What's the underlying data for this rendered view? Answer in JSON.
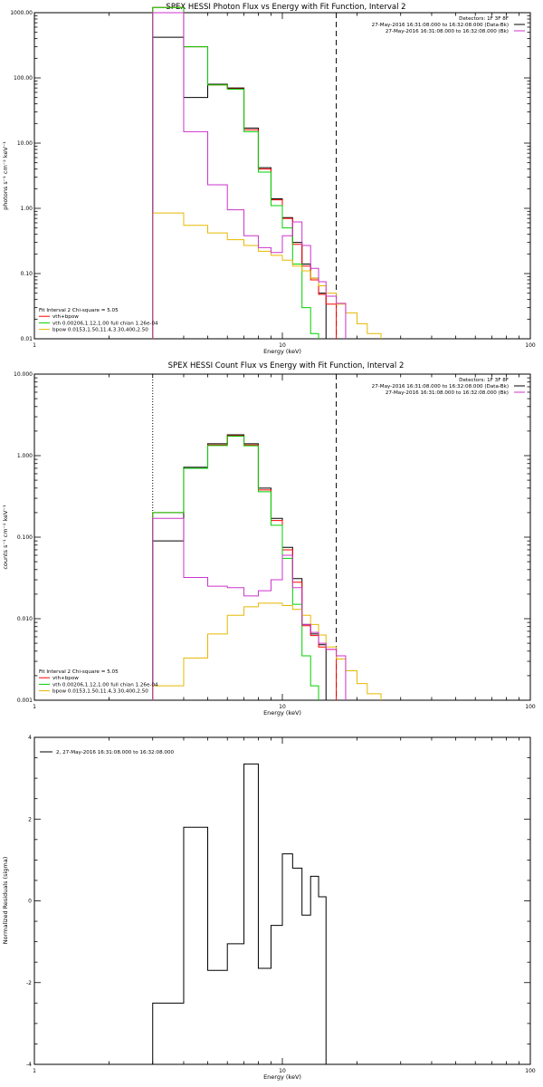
{
  "page": {
    "background": "#ffffff"
  },
  "colors": {
    "total": "#000000",
    "fit": "#ff0000",
    "vth": "#00d000",
    "bpow": "#e6b800",
    "data": "#cc33cc",
    "axes": "#000000"
  },
  "chart_data": [
    {
      "id": "photon",
      "type": "line",
      "title": "SPEX HESSI Photon Flux vs Energy with Fit Function, Interval 2",
      "xlabel": "Energy (keV)",
      "ylabel": "photons s⁻¹ cm⁻² keV⁻¹",
      "xscale": "log",
      "yscale": "log",
      "xlim": [
        1,
        100
      ],
      "ylim": [
        0.01,
        1000
      ],
      "x_ticks": [
        "1",
        "10",
        "100"
      ],
      "y_ticks": [
        "0.01",
        "0.10",
        "1.00",
        "10.00",
        "100.00",
        "1000.00"
      ],
      "vlines": [
        {
          "x": 3,
          "style": "dotted"
        },
        {
          "x": 16.5,
          "style": "dashed"
        }
      ],
      "legend_top": {
        "placement": "top-right",
        "lines": [
          {
            "text": "Detectors: 1F 3F 8F",
            "series": null
          },
          {
            "text": "27-May-2016 16:31:08.000 to 16:32:08.000 (Data-Bk)",
            "series": "total"
          },
          {
            "text": "27-May-2016 16:31:08.000 to 16:32:08.000 (Bk)",
            "series": "data"
          }
        ]
      },
      "legend_bottom": {
        "placement": "bottom-left",
        "lines": [
          {
            "text": "Fit Interval  2   Chi-square = 5.05",
            "series": null
          },
          {
            "text": "vth+bpow",
            "series": "fit"
          },
          {
            "text": "vth 0.00206,1.12,1.00  full chian 1.26e-04",
            "series": "vth"
          },
          {
            "text": "bpow 0.0153,1.50,11.4,3.30,400,2.50",
            "series": "bpow"
          }
        ]
      },
      "bin_edges": [
        3,
        4,
        5,
        6,
        7,
        8,
        9,
        10,
        11,
        12,
        13,
        14,
        15,
        16.5,
        18,
        20,
        22,
        25
      ],
      "series": [
        {
          "key": "total",
          "values": [
            420,
            50,
            80,
            70,
            17,
            4.2,
            1.4,
            0.72,
            0.3,
            0.14,
            0.085,
            0.05,
            null,
            null,
            null,
            null,
            null
          ]
        },
        {
          "key": "fit",
          "values": [
            1200,
            300,
            78,
            68,
            16,
            4.0,
            1.35,
            0.7,
            0.28,
            0.13,
            0.08,
            0.048,
            0.034,
            null,
            null,
            null,
            null
          ]
        },
        {
          "key": "vth",
          "values": [
            1200,
            300,
            78,
            67,
            15,
            3.6,
            1.1,
            0.5,
            0.14,
            0.03,
            0.012,
            null,
            null,
            null,
            null,
            null,
            null
          ]
        },
        {
          "key": "bpow",
          "values": [
            0.85,
            0.55,
            0.42,
            0.33,
            0.27,
            0.22,
            0.19,
            0.16,
            0.13,
            0.11,
            0.085,
            0.065,
            0.05,
            0.034,
            0.025,
            0.017,
            0.012
          ]
        },
        {
          "key": "data",
          "values": [
            1000,
            15,
            2.3,
            0.95,
            0.38,
            0.25,
            0.21,
            0.38,
            0.62,
            0.27,
            0.12,
            0.075,
            0.045,
            0.035,
            null,
            null,
            null
          ]
        }
      ]
    },
    {
      "id": "count",
      "type": "line",
      "title": "SPEX HESSI Count Flux vs Energy with Fit Function, Interval 2",
      "xlabel": "Energy (keV)",
      "ylabel": "counts s⁻¹ cm⁻² keV⁻¹",
      "xscale": "log",
      "yscale": "log",
      "xlim": [
        1,
        100
      ],
      "ylim": [
        0.001,
        10
      ],
      "x_ticks": [
        "1",
        "10",
        "100"
      ],
      "y_ticks": [
        "0.001",
        "0.010",
        "0.100",
        "1.000",
        "10.000"
      ],
      "vlines": [
        {
          "x": 3,
          "style": "dotted"
        },
        {
          "x": 16.5,
          "style": "dashed"
        }
      ],
      "legend_top": {
        "placement": "top-right",
        "lines": [
          {
            "text": "Detectors: 1F 3F 8F",
            "series": null
          },
          {
            "text": "27-May-2016 16:31:08.000 to 16:32:08.000 (Data-Bk)",
            "series": "total"
          },
          {
            "text": "27-May-2016 16:31:08.000 to 16:32:08.000 (Bk)",
            "series": "data"
          }
        ]
      },
      "legend_bottom": {
        "placement": "bottom-left",
        "lines": [
          {
            "text": "Fit Interval  2   Chi-square = 5.05",
            "series": null
          },
          {
            "text": "vth+bpow",
            "series": "fit"
          },
          {
            "text": "vth 0.00206,1.12,1.00  full chian 1.26e-04",
            "series": "vth"
          },
          {
            "text": "bpow 0.0153,1.50,11.4,3.30,400,2.50",
            "series": "bpow"
          }
        ]
      },
      "bin_edges": [
        3,
        4,
        5,
        6,
        7,
        8,
        9,
        10,
        11,
        12,
        13,
        14,
        15,
        16.5,
        18,
        20,
        22,
        25
      ],
      "series": [
        {
          "key": "total",
          "values": [
            0.09,
            0.72,
            1.4,
            1.8,
            1.4,
            0.4,
            0.17,
            0.075,
            0.031,
            0.0085,
            0.0065,
            0.0048,
            null,
            null,
            null,
            null,
            null
          ]
        },
        {
          "key": "fit",
          "values": [
            0.2,
            0.7,
            1.35,
            1.75,
            1.35,
            0.38,
            0.16,
            0.07,
            0.028,
            0.0082,
            0.0062,
            0.0045,
            0.0042,
            null,
            null,
            null,
            null
          ]
        },
        {
          "key": "vth",
          "values": [
            0.2,
            0.7,
            1.33,
            1.73,
            1.32,
            0.36,
            0.14,
            0.055,
            0.015,
            0.0035,
            0.0015,
            null,
            null,
            null,
            null,
            null,
            null
          ]
        },
        {
          "key": "bpow",
          "values": [
            0.0015,
            0.0033,
            0.0065,
            0.011,
            0.014,
            0.0155,
            0.0155,
            0.0145,
            0.013,
            0.011,
            0.0085,
            0.0063,
            0.0045,
            0.0032,
            0.0023,
            0.0016,
            0.0012
          ]
        },
        {
          "key": "data",
          "values": [
            0.17,
            0.032,
            0.025,
            0.024,
            0.019,
            0.022,
            0.03,
            0.06,
            0.024,
            0.0085,
            0.0068,
            0.005,
            0.0042,
            0.0035,
            null,
            null,
            null
          ]
        }
      ]
    },
    {
      "id": "residuals",
      "type": "line",
      "title": "",
      "xlabel": "Energy (keV)",
      "ylabel": "Normalized Residuals (sigma)",
      "xscale": "log",
      "yscale": "linear",
      "xlim": [
        1,
        100
      ],
      "ylim": [
        -4,
        4
      ],
      "x_ticks": [
        "1",
        "10",
        "100"
      ],
      "y_ticks": [
        "-4",
        "-2",
        "0",
        "2",
        "4"
      ],
      "legend_top": {
        "placement": "top-left",
        "lines": [
          {
            "text": "2, 27-May-2016 16:31:08.000 to 16:32:08.000",
            "series": "total"
          }
        ]
      },
      "bin_edges": [
        3,
        4,
        5,
        6,
        7,
        8,
        9,
        10,
        11,
        12,
        13,
        14,
        15,
        16.5
      ],
      "series": [
        {
          "key": "total",
          "values": [
            -2.5,
            1.8,
            -1.7,
            -1.05,
            3.35,
            -1.65,
            -0.6,
            1.15,
            0.8,
            -0.35,
            0.6,
            0.1,
            null
          ]
        }
      ]
    }
  ]
}
